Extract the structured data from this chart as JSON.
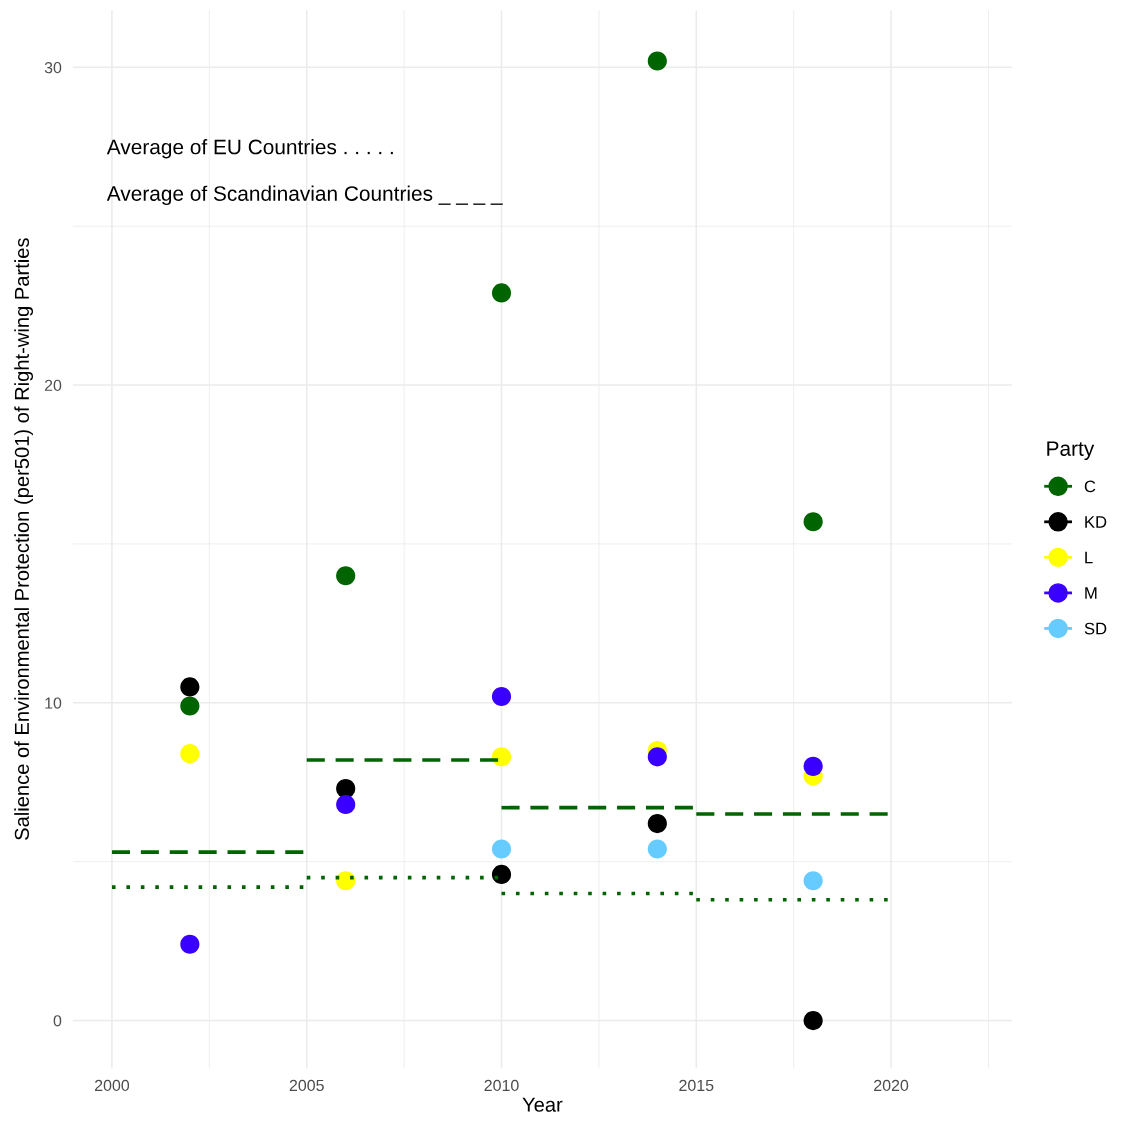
{
  "chart_data": {
    "type": "scatter",
    "xlabel": "Year",
    "ylabel": "Salience of Environmental Protection (per501) of Right-wing Parties",
    "legend_title": "Party",
    "legend": "right",
    "grid": true,
    "marker": "circle",
    "xlim": [
      1999.0,
      2023.1
    ],
    "ylim": [
      -1.5,
      31.8
    ],
    "xticks": [
      2000,
      2005,
      2010,
      2015,
      2020
    ],
    "yticks": [
      0,
      10,
      20,
      30
    ],
    "annotations": [
      "Average of EU Countries . . . . .",
      "Average of Scandinavian Countries _ _ _ _"
    ],
    "series": [
      {
        "type": "line",
        "marker": "none",
        "line_style": "dashed",
        "color": "#006400",
        "x": [
          2000,
          2005
        ],
        "values": [
          5.3,
          5.3
        ]
      },
      {
        "type": "line",
        "marker": "none",
        "line_style": "dashed",
        "color": "#006400",
        "x": [
          2005,
          2010
        ],
        "values": [
          8.2,
          8.2
        ]
      },
      {
        "type": "line",
        "marker": "none",
        "line_style": "dashed",
        "color": "#006400",
        "x": [
          2010,
          2015
        ],
        "values": [
          6.7,
          6.7
        ]
      },
      {
        "type": "line",
        "marker": "none",
        "line_style": "dashed",
        "color": "#006400",
        "x": [
          2015,
          2020
        ],
        "values": [
          6.5,
          6.5
        ]
      },
      {
        "type": "line",
        "marker": "none",
        "line_style": "dotted",
        "color": "#006400",
        "x": [
          2000,
          2005
        ],
        "values": [
          4.2,
          4.2
        ]
      },
      {
        "type": "line",
        "marker": "none",
        "line_style": "dotted",
        "color": "#006400",
        "x": [
          2005,
          2010
        ],
        "values": [
          4.5,
          4.5
        ]
      },
      {
        "type": "line",
        "marker": "none",
        "line_style": "dotted",
        "color": "#006400",
        "x": [
          2010,
          2015
        ],
        "values": [
          4.0,
          4.0
        ]
      },
      {
        "type": "line",
        "marker": "none",
        "line_style": "dotted",
        "color": "#006400",
        "x": [
          2015,
          2020
        ],
        "values": [
          3.8,
          3.8
        ]
      },
      {
        "name": "C",
        "color": "#006400",
        "x": [
          2002,
          2006,
          2010,
          2014,
          2018
        ],
        "values": [
          9.9,
          14.0,
          22.9,
          30.2,
          15.7
        ]
      },
      {
        "name": "KD",
        "color": "#000000",
        "x": [
          2002,
          2006,
          2010,
          2014,
          2018
        ],
        "values": [
          10.5,
          7.3,
          4.6,
          6.2,
          0
        ]
      },
      {
        "name": "L",
        "color": "#ffff00",
        "x": [
          2002,
          2006,
          2010,
          2014,
          2018
        ],
        "values": [
          8.4,
          4.4,
          8.3,
          8.5,
          7.7
        ]
      },
      {
        "name": "M",
        "color": "#3a00ff",
        "x": [
          2002,
          2006,
          2010,
          2014,
          2018
        ],
        "values": [
          2.4,
          6.8,
          10.2,
          8.3,
          8.0
        ]
      },
      {
        "name": "SD",
        "color": "#66ccff",
        "x": [
          2010,
          2014,
          2018
        ],
        "values": [
          5.4,
          5.4,
          4.4
        ]
      }
    ]
  }
}
